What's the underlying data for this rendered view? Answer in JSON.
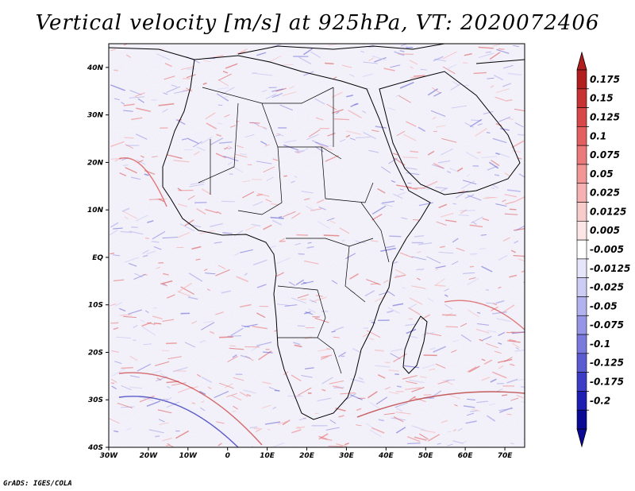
{
  "title": "Vertical velocity [m/s] at 925hPa, VT: 2020072406",
  "footer": "GrADS: IGES/COLA",
  "map": {
    "lat_ticks": [
      "40N",
      "30N",
      "20N",
      "10N",
      "EQ",
      "10S",
      "20S",
      "30S",
      "40S"
    ],
    "lon_ticks": [
      "30W",
      "20W",
      "10W",
      "0",
      "10E",
      "20E",
      "30E",
      "40E",
      "50E",
      "60E",
      "70E"
    ],
    "lat_range": [
      -40,
      45
    ],
    "lon_range": [
      -30,
      75
    ]
  },
  "colorbar": {
    "labels": [
      "0.175",
      "0.15",
      "0.125",
      "0.1",
      "0.075",
      "0.05",
      "0.025",
      "0.0125",
      "0.005",
      "-0.005",
      "-0.0125",
      "-0.025",
      "-0.05",
      "-0.075",
      "-0.1",
      "-0.125",
      "-0.175",
      "-0.2"
    ],
    "colors": [
      "#b21e1e",
      "#c83232",
      "#d84848",
      "#e46060",
      "#ec7a7a",
      "#f29696",
      "#f6b2b2",
      "#f9cccc",
      "#fde6e6",
      "#ffffff",
      "#e6e6fa",
      "#ccccf4",
      "#b2b2ee",
      "#9696e6",
      "#7a7ade",
      "#5c5cd2",
      "#3c3cc6",
      "#1e1eb4",
      "#0a0a96"
    ]
  }
}
